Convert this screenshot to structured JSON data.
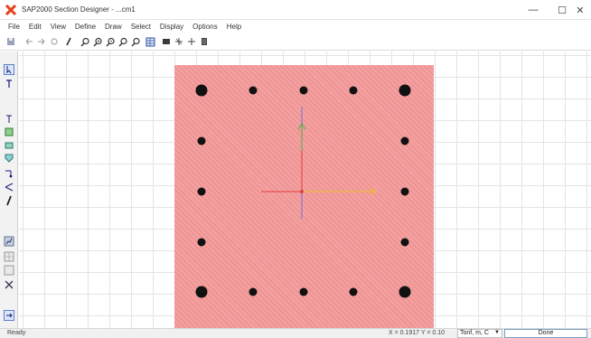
{
  "window": {
    "title": "SAP2000 Section Designer - ...cm1",
    "minimize_glyph": "—",
    "maximize_glyph": "☐",
    "close_glyph": "✕",
    "accent": "#e8401c"
  },
  "menu": [
    "File",
    "Edit",
    "View",
    "Define",
    "Draw",
    "Select",
    "Display",
    "Options",
    "Help"
  ],
  "toolbar": {
    "icons": [
      "save-icon",
      "undo-icon",
      "redo-icon",
      "refresh-icon",
      "pencil-icon",
      "zoom-window-icon",
      "zoom-in-icon",
      "zoom-out-icon",
      "pan-icon",
      "zoom-previous-icon",
      "table-icon",
      "grid-icon",
      "snap-icon",
      "plus-icon",
      "properties-icon"
    ]
  },
  "left_toolbar": {
    "icons": [
      "pointer-icon",
      "reshape-icon",
      "text-icon",
      "draw-rectangle-icon",
      "draw-polygon-icon",
      "draw-shape-icon",
      "draw-rebar-icon",
      "draw-rebar-line-icon",
      "draw-rebar-edge-icon",
      "chart-icon",
      "grid-icon",
      "snap-icon",
      "scissors-icon",
      "layer-icon"
    ]
  },
  "section": {
    "fill_color": "#f4a0a0",
    "rebar_color": "#111111",
    "axis_colors": {
      "x": "#e8c020",
      "y": "#4ab04a",
      "z": "#7070e0",
      "neg": "#e04040"
    }
  },
  "status": {
    "ready": "Ready",
    "coordinates": "X = 0.1917  Y = 0.10",
    "units": "Tonf, m, C",
    "done": "Done"
  }
}
